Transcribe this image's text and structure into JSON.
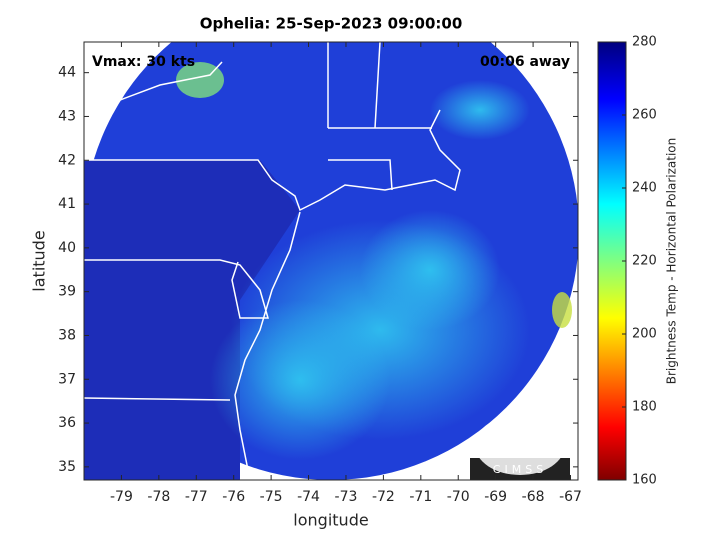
{
  "map": {
    "title": "Ophelia: 25-Sep-2023 09:00:00",
    "annotation_left": "Vmax: 30 kts",
    "annotation_right": "00:06 away",
    "logo": "CIMSS",
    "xaxis": {
      "label": "longitude",
      "lim": [
        -80,
        -66.8
      ],
      "ticks": [
        -79,
        -78,
        -77,
        -76,
        -75,
        -74,
        -73,
        -72,
        -71,
        -70,
        -69,
        -68,
        -67
      ]
    },
    "yaxis": {
      "label": "latitude",
      "lim": [
        34.7,
        44.7
      ],
      "ticks": [
        35,
        36,
        37,
        38,
        39,
        40,
        41,
        42,
        43,
        44
      ]
    },
    "colorbar": {
      "label": "Brightness Temp - Horizontal Polarization",
      "lim": [
        160,
        280
      ],
      "ticks": [
        160,
        180,
        200,
        220,
        240,
        260,
        280
      ]
    }
  }
}
